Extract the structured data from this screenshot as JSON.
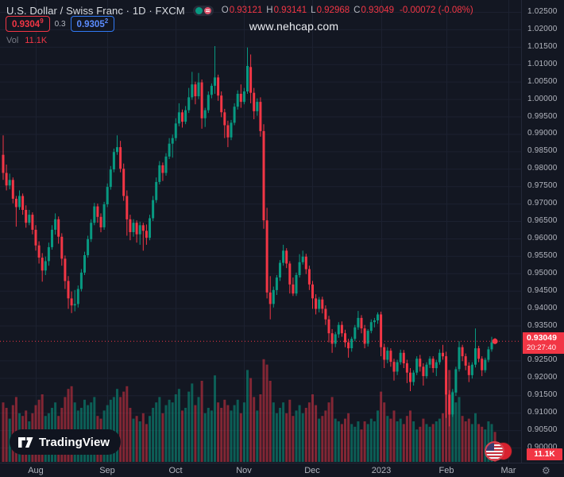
{
  "header": {
    "symbol_title": "U.S. Dollar / Swiss Franc · 1D · FXCM",
    "ohlc": {
      "o_label": "O",
      "o": "0.93121",
      "h_label": "H",
      "h": "0.93141",
      "l_label": "L",
      "l": "0.92968",
      "c_label": "C",
      "c": "0.93049",
      "change": "-0.00072 (-0.08%)"
    },
    "sell": {
      "main": "0.9304",
      "sup": "9"
    },
    "spread": "0.3",
    "buy": {
      "main": "0.9305",
      "sup": "2"
    },
    "vol_label": "Vol",
    "vol_value": "11.1K"
  },
  "watermark": "www.nehcap.com",
  "logo": {
    "text": "TradingView"
  },
  "icons": {
    "gear": "⚙"
  },
  "colors": {
    "bg": "#131722",
    "up": "#089981",
    "down": "#f23645",
    "grid": "#1c2130",
    "axis_text": "#b2b5be",
    "vol_up": "rgba(8,153,129,0.55)",
    "vol_down": "rgba(242,54,69,0.5)",
    "buy_blue": "#3179f5"
  },
  "price_axis": {
    "labels": [
      "1.02500",
      "1.02000",
      "1.01500",
      "1.01000",
      "1.00500",
      "1.00000",
      "0.99500",
      "0.99000",
      "0.98500",
      "0.98000",
      "0.97500",
      "0.97000",
      "0.96500",
      "0.96000",
      "0.95500",
      "0.95000",
      "0.94500",
      "0.94000",
      "0.93500",
      "0.92500",
      "0.92000",
      "0.91500",
      "0.91000",
      "0.90500",
      "0.90000"
    ],
    "badge": {
      "price": "0.93049",
      "countdown": "20:27:40"
    },
    "volume_badge": "11.1K"
  },
  "time_axis": {
    "months": [
      {
        "label": "Aug",
        "i": 10
      },
      {
        "label": "Sep",
        "i": 32
      },
      {
        "label": "Oct",
        "i": 53
      },
      {
        "label": "Nov",
        "i": 74
      },
      {
        "label": "Dec",
        "i": 95
      },
      {
        "label": "2023",
        "i": 116
      },
      {
        "label": "Feb",
        "i": 136
      },
      {
        "label": "Mar",
        "i": 155
      }
    ]
  },
  "chart_data": {
    "type": "candlestick+volume",
    "symbol": "USDCHF",
    "timeframe": "1D",
    "exchange": "FXCM",
    "title": "U.S. Dollar / Swiss Franc",
    "y_axis": {
      "min": 0.895,
      "max": 1.0275,
      "tick_step": 0.005
    },
    "x_axis_months": [
      "Aug",
      "Sep",
      "Oct",
      "Nov",
      "Dec",
      "2023",
      "Feb",
      "Mar"
    ],
    "current_price": 0.93049,
    "current_volume_k": 11.1,
    "countdown": "20:27:40",
    "legend_note": "candles as [open, high, low, close, volume_k]",
    "candles": [
      [
        0.984,
        0.9896,
        0.9768,
        0.9788,
        22
      ],
      [
        0.9788,
        0.9812,
        0.9738,
        0.9752,
        20
      ],
      [
        0.9752,
        0.9786,
        0.9741,
        0.9768,
        16
      ],
      [
        0.9768,
        0.9775,
        0.9701,
        0.9714,
        21
      ],
      [
        0.9714,
        0.9722,
        0.9634,
        0.969,
        24
      ],
      [
        0.969,
        0.9738,
        0.9682,
        0.9722,
        18
      ],
      [
        0.9722,
        0.9729,
        0.9668,
        0.9682,
        17
      ],
      [
        0.9682,
        0.9695,
        0.9631,
        0.9645,
        19
      ],
      [
        0.9645,
        0.9682,
        0.9638,
        0.9668,
        15
      ],
      [
        0.9668,
        0.9675,
        0.9612,
        0.9625,
        18
      ],
      [
        0.9625,
        0.9638,
        0.9565,
        0.958,
        21
      ],
      [
        0.958,
        0.9592,
        0.9528,
        0.9545,
        23
      ],
      [
        0.9545,
        0.9558,
        0.9476,
        0.9508,
        25
      ],
      [
        0.9508,
        0.9548,
        0.9495,
        0.9535,
        17
      ],
      [
        0.9535,
        0.9588,
        0.9522,
        0.9575,
        18
      ],
      [
        0.9575,
        0.9638,
        0.9568,
        0.9625,
        20
      ],
      [
        0.9625,
        0.9672,
        0.9611,
        0.9655,
        22
      ],
      [
        0.9655,
        0.9663,
        0.9585,
        0.9605,
        17
      ],
      [
        0.9605,
        0.9615,
        0.9522,
        0.9542,
        20
      ],
      [
        0.9542,
        0.9551,
        0.9455,
        0.9478,
        24
      ],
      [
        0.9478,
        0.9492,
        0.9398,
        0.9428,
        27
      ],
      [
        0.9428,
        0.9448,
        0.9386,
        0.9408,
        28
      ],
      [
        0.9408,
        0.9452,
        0.9391,
        0.9412,
        22
      ],
      [
        0.9412,
        0.9465,
        0.9402,
        0.9455,
        19
      ],
      [
        0.9455,
        0.9512,
        0.9448,
        0.9502,
        20
      ],
      [
        0.9502,
        0.9562,
        0.9495,
        0.9552,
        23
      ],
      [
        0.9552,
        0.9608,
        0.9545,
        0.9598,
        21
      ],
      [
        0.9598,
        0.9655,
        0.959,
        0.9645,
        22
      ],
      [
        0.9645,
        0.9702,
        0.9638,
        0.9692,
        24
      ],
      [
        0.9692,
        0.97,
        0.9645,
        0.9662,
        17
      ],
      [
        0.9662,
        0.9672,
        0.9618,
        0.9632,
        16
      ],
      [
        0.9632,
        0.9705,
        0.9625,
        0.9698,
        19
      ],
      [
        0.9698,
        0.9758,
        0.969,
        0.9748,
        21
      ],
      [
        0.9748,
        0.9808,
        0.974,
        0.9798,
        23
      ],
      [
        0.9798,
        0.9858,
        0.979,
        0.9848,
        24
      ],
      [
        0.9848,
        0.9896,
        0.984,
        0.9862,
        27
      ],
      [
        0.9862,
        0.988,
        0.979,
        0.98,
        24
      ],
      [
        0.98,
        0.9815,
        0.9708,
        0.9722,
        26
      ],
      [
        0.9722,
        0.9738,
        0.9608,
        0.9655,
        28
      ],
      [
        0.9655,
        0.9668,
        0.9595,
        0.9618,
        20
      ],
      [
        0.9618,
        0.9655,
        0.9605,
        0.9645,
        16
      ],
      [
        0.9645,
        0.9652,
        0.9588,
        0.9612,
        17
      ],
      [
        0.9612,
        0.9648,
        0.9582,
        0.9638,
        15
      ],
      [
        0.9638,
        0.9645,
        0.9565,
        0.9622,
        18
      ],
      [
        0.9622,
        0.964,
        0.9582,
        0.9602,
        14
      ],
      [
        0.9602,
        0.9668,
        0.9595,
        0.9658,
        17
      ],
      [
        0.9658,
        0.9722,
        0.965,
        0.971,
        20
      ],
      [
        0.971,
        0.9775,
        0.9702,
        0.9762,
        22
      ],
      [
        0.9762,
        0.9822,
        0.9755,
        0.981,
        24
      ],
      [
        0.981,
        0.9818,
        0.9765,
        0.9788,
        18
      ],
      [
        0.9788,
        0.9845,
        0.978,
        0.9835,
        21
      ],
      [
        0.9835,
        0.9888,
        0.9828,
        0.9872,
        23
      ],
      [
        0.9872,
        0.9898,
        0.9832,
        0.9888,
        22
      ],
      [
        0.9888,
        0.9945,
        0.988,
        0.993,
        25
      ],
      [
        0.993,
        0.9988,
        0.9922,
        0.9962,
        27
      ],
      [
        0.9962,
        0.997,
        0.9918,
        0.9935,
        19
      ],
      [
        0.9935,
        0.998,
        0.9928,
        0.9968,
        20
      ],
      [
        0.9968,
        1.0032,
        0.996,
        1.0005,
        26
      ],
      [
        1.0005,
        1.0078,
        0.9998,
        1.0042,
        29
      ],
      [
        1.0042,
        1.005,
        0.9985,
        1.0008,
        21
      ],
      [
        1.0008,
        1.0075,
        1.0,
        1.0048,
        24
      ],
      [
        1.0048,
        1.0056,
        0.9915,
        0.9945,
        30
      ],
      [
        0.9945,
        0.9975,
        0.992,
        0.9968,
        18
      ],
      [
        0.9968,
        1.0022,
        0.996,
        1.0012,
        20
      ],
      [
        1.0012,
        1.0045,
        1.0002,
        1.0038,
        19
      ],
      [
        1.0038,
        1.0152,
        1.0015,
        1.0062,
        32
      ],
      [
        1.0062,
        1.007,
        0.9995,
        1.001,
        22
      ],
      [
        1.001,
        1.0022,
        0.9948,
        0.9962,
        20
      ],
      [
        0.9962,
        0.9972,
        0.9888,
        0.9925,
        23
      ],
      [
        0.9925,
        0.9938,
        0.9862,
        0.989,
        21
      ],
      [
        0.989,
        0.994,
        0.9882,
        0.9932,
        19
      ],
      [
        0.9932,
        0.9988,
        0.9925,
        0.9978,
        21
      ],
      [
        0.9978,
        1.0025,
        0.997,
        1.0015,
        23
      ],
      [
        1.0015,
        1.0042,
        0.9975,
        0.9992,
        18
      ],
      [
        0.9992,
        1.0032,
        0.9985,
        1.0022,
        22
      ],
      [
        1.0022,
        1.0148,
        1.0015,
        1.0095,
        34
      ],
      [
        1.0092,
        1.0128,
        0.9988,
        1.0018,
        31
      ],
      [
        1.0018,
        1.0032,
        0.9942,
        0.9965,
        24
      ],
      [
        0.9965,
        1.0002,
        0.9952,
        0.9992,
        19
      ],
      [
        0.9992,
        1.0005,
        0.9892,
        0.9908,
        25
      ],
      [
        0.9908,
        0.9928,
        0.9628,
        0.9652,
        38
      ],
      [
        0.9652,
        0.9688,
        0.9428,
        0.9445,
        36
      ],
      [
        0.9445,
        0.9492,
        0.9368,
        0.9412,
        30
      ],
      [
        0.9412,
        0.9462,
        0.9402,
        0.9452,
        22
      ],
      [
        0.9452,
        0.9495,
        0.9438,
        0.9488,
        18
      ],
      [
        0.9488,
        0.9538,
        0.9478,
        0.953,
        20
      ],
      [
        0.953,
        0.9582,
        0.9522,
        0.9565,
        22
      ],
      [
        0.9565,
        0.9572,
        0.9515,
        0.9528,
        18
      ],
      [
        0.9528,
        0.9535,
        0.9442,
        0.9468,
        23
      ],
      [
        0.9468,
        0.9488,
        0.9435,
        0.9442,
        17
      ],
      [
        0.9442,
        0.9502,
        0.9435,
        0.9495,
        19
      ],
      [
        0.9495,
        0.9555,
        0.9488,
        0.9532,
        21
      ],
      [
        0.9532,
        0.9565,
        0.9525,
        0.9548,
        18
      ],
      [
        0.9548,
        0.9556,
        0.9498,
        0.9512,
        20
      ],
      [
        0.9512,
        0.9522,
        0.9452,
        0.9468,
        22
      ],
      [
        0.9468,
        0.9478,
        0.9398,
        0.9428,
        25
      ],
      [
        0.9428,
        0.944,
        0.9382,
        0.9398,
        21
      ],
      [
        0.9398,
        0.9432,
        0.9388,
        0.9425,
        16
      ],
      [
        0.9425,
        0.9433,
        0.9385,
        0.9398,
        17
      ],
      [
        0.9398,
        0.9408,
        0.9352,
        0.9368,
        19
      ],
      [
        0.9368,
        0.9378,
        0.9302,
        0.9328,
        22
      ],
      [
        0.9328,
        0.934,
        0.9272,
        0.9298,
        24
      ],
      [
        0.9298,
        0.9332,
        0.9288,
        0.9325,
        16
      ],
      [
        0.9325,
        0.936,
        0.9315,
        0.9352,
        15
      ],
      [
        0.9352,
        0.9362,
        0.9318,
        0.9328,
        14
      ],
      [
        0.9328,
        0.9338,
        0.9288,
        0.9302,
        16
      ],
      [
        0.9302,
        0.9312,
        0.9258,
        0.9285,
        18
      ],
      [
        0.9285,
        0.9318,
        0.9275,
        0.9312,
        14
      ],
      [
        0.9312,
        0.9352,
        0.9305,
        0.9345,
        13
      ],
      [
        0.9345,
        0.9392,
        0.9338,
        0.9372,
        15
      ],
      [
        0.9372,
        0.938,
        0.9328,
        0.9342,
        12
      ],
      [
        0.9342,
        0.9352,
        0.9285,
        0.9298,
        15
      ],
      [
        0.9298,
        0.934,
        0.929,
        0.9335,
        14
      ],
      [
        0.9335,
        0.9368,
        0.9328,
        0.936,
        16
      ],
      [
        0.936,
        0.9372,
        0.9345,
        0.9365,
        15
      ],
      [
        0.9365,
        0.9388,
        0.9355,
        0.9382,
        19
      ],
      [
        0.9382,
        0.939,
        0.9262,
        0.9288,
        26
      ],
      [
        0.9288,
        0.9298,
        0.9228,
        0.9252,
        22
      ],
      [
        0.9252,
        0.9288,
        0.9242,
        0.9278,
        17
      ],
      [
        0.9278,
        0.9285,
        0.9232,
        0.9246,
        16
      ],
      [
        0.9246,
        0.9255,
        0.9192,
        0.9218,
        19
      ],
      [
        0.9218,
        0.9252,
        0.9208,
        0.9245,
        15
      ],
      [
        0.9245,
        0.9281,
        0.9238,
        0.9272,
        16
      ],
      [
        0.9272,
        0.928,
        0.9228,
        0.9242,
        14
      ],
      [
        0.9242,
        0.9252,
        0.9185,
        0.9215,
        17
      ],
      [
        0.9215,
        0.9228,
        0.9162,
        0.9188,
        19
      ],
      [
        0.9188,
        0.9222,
        0.9178,
        0.9215,
        15
      ],
      [
        0.9215,
        0.9262,
        0.9208,
        0.9255,
        12
      ],
      [
        0.9255,
        0.9266,
        0.9218,
        0.9232,
        13
      ],
      [
        0.9232,
        0.9242,
        0.9178,
        0.9205,
        16
      ],
      [
        0.9205,
        0.9245,
        0.9198,
        0.9238,
        14
      ],
      [
        0.9238,
        0.9262,
        0.9228,
        0.9255,
        13
      ],
      [
        0.9255,
        0.9262,
        0.9215,
        0.9228,
        14
      ],
      [
        0.9228,
        0.9252,
        0.9205,
        0.9245,
        15
      ],
      [
        0.9245,
        0.9282,
        0.9238,
        0.9272,
        16
      ],
      [
        0.9272,
        0.9295,
        0.9252,
        0.9262,
        18
      ],
      [
        0.9262,
        0.9275,
        0.9085,
        0.9152,
        32
      ],
      [
        0.9152,
        0.9165,
        0.9061,
        0.9095,
        34
      ],
      [
        0.9095,
        0.9168,
        0.9088,
        0.9158,
        26
      ],
      [
        0.9158,
        0.9232,
        0.9148,
        0.9225,
        22
      ],
      [
        0.9225,
        0.9305,
        0.9218,
        0.9288,
        24
      ],
      [
        0.9288,
        0.9295,
        0.9248,
        0.9262,
        17
      ],
      [
        0.9262,
        0.927,
        0.9222,
        0.9235,
        15
      ],
      [
        0.9235,
        0.9245,
        0.9188,
        0.9208,
        16
      ],
      [
        0.9208,
        0.9245,
        0.9198,
        0.9238,
        14
      ],
      [
        0.9238,
        0.9342,
        0.923,
        0.9285,
        18
      ],
      [
        0.9285,
        0.9292,
        0.9245,
        0.9255,
        14
      ],
      [
        0.9255,
        0.9262,
        0.9205,
        0.9222,
        13
      ],
      [
        0.9222,
        0.9258,
        0.9215,
        0.9252,
        12
      ],
      [
        0.9252,
        0.929,
        0.9245,
        0.9282,
        15
      ],
      [
        0.9282,
        0.9318,
        0.9275,
        0.9302,
        14
      ],
      [
        0.93121,
        0.93141,
        0.92968,
        0.93049,
        11.1
      ]
    ]
  }
}
